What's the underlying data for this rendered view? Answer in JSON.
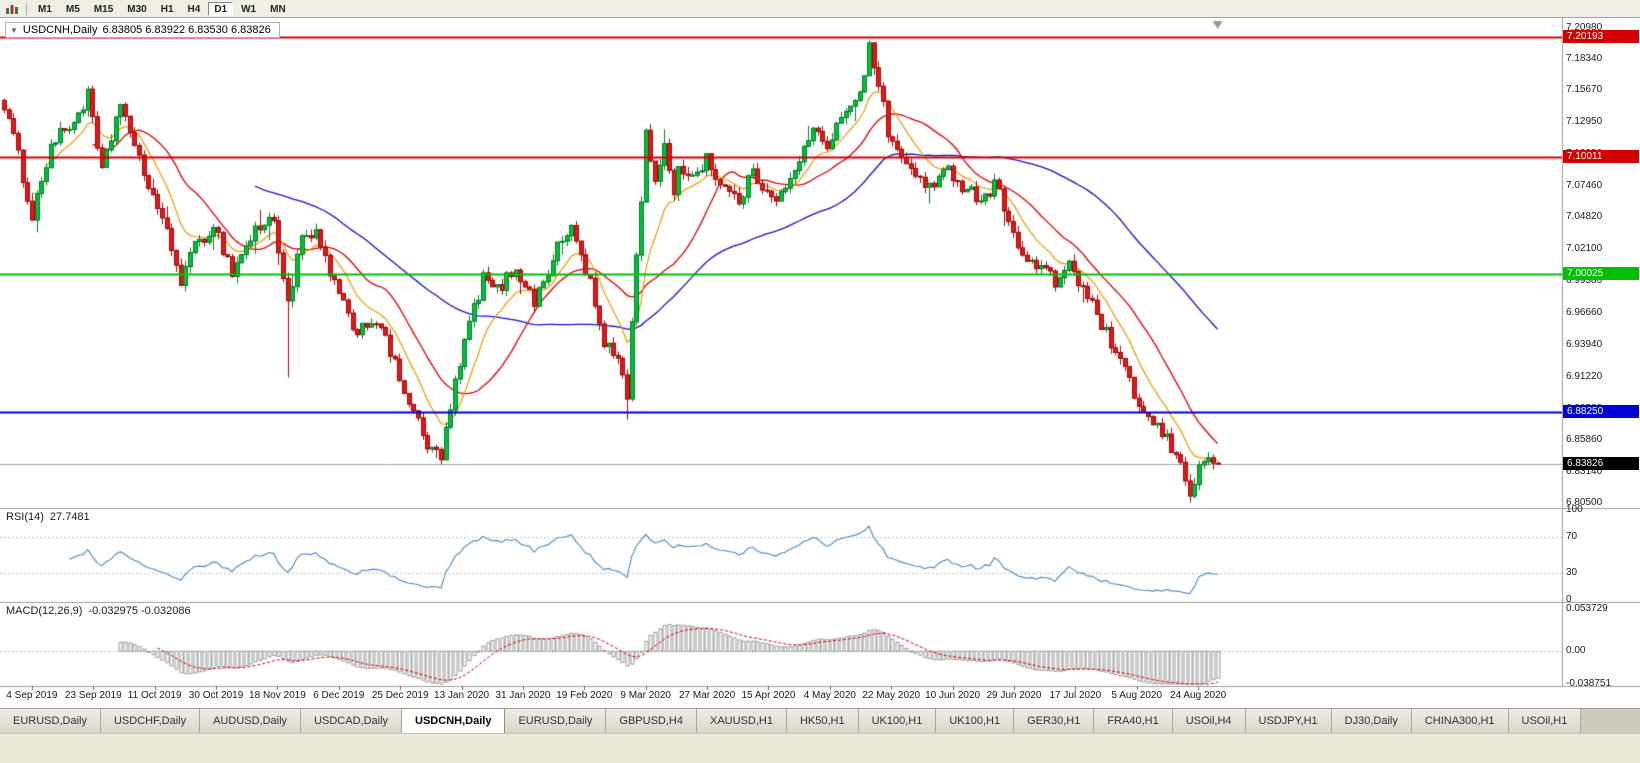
{
  "toolbar": {
    "chart_icon": "chart-icon",
    "timeframes": [
      "M1",
      "M5",
      "M15",
      "M30",
      "H1",
      "H4",
      "D1",
      "W1",
      "MN"
    ],
    "active": "D1"
  },
  "chart": {
    "symbol_period": "USDCNH,Daily",
    "ohlc": "6.83805 6.83922 6.83530 6.83826",
    "collapse_icon": "triangle-down"
  },
  "price_axis": {
    "labels": [
      "7.20980",
      "7.18340",
      "7.15670",
      "7.12950",
      "7.10230",
      "7.07460",
      "7.04820",
      "7.02100",
      "6.99380",
      "6.96660",
      "6.93940",
      "6.91220",
      "6.88500",
      "6.85860",
      "6.83140",
      "6.80500"
    ]
  },
  "levels": [
    {
      "label": "7.20193",
      "price": 7.20193,
      "color": "#D40000",
      "kind": "resistance"
    },
    {
      "label": "7.10011",
      "price": 7.10011,
      "color": "#D40000",
      "kind": "resistance"
    },
    {
      "label": "7.00025",
      "price": 7.00025,
      "color": "#00BE00",
      "kind": "support"
    },
    {
      "label": "6.88250",
      "price": 6.8825,
      "color": "#0000D4",
      "kind": "support"
    },
    {
      "label": "6.83826",
      "price": 6.83826,
      "color": "#000000",
      "kind": "current"
    }
  ],
  "rsi": {
    "label": "RSI(14)",
    "value": "27.7481",
    "scale": [
      "100",
      "70",
      "30",
      "0"
    ],
    "upper_level": 70,
    "lower_level": 30,
    "line_color": "#4C86C8"
  },
  "macd": {
    "label": "MACD(12,26,9)",
    "values": "-0.032975 -0.032086",
    "scale": [
      "0.053729",
      "0.00",
      "-0.038751"
    ],
    "histogram_color": "#9A9A9A",
    "signal_color": "#D40000"
  },
  "date_axis": {
    "labels": [
      "4 Sep 2019",
      "23 Sep 2019",
      "11 Oct 2019",
      "30 Oct 2019",
      "18 Nov 2019",
      "6 Dec 2019",
      "25 Dec 2019",
      "13 Jan 2020",
      "31 Jan 2020",
      "19 Feb 2020",
      "9 Mar 2020",
      "27 Mar 2020",
      "15 Apr 2020",
      "4 May 2020",
      "22 May 2020",
      "10 Jun 2020",
      "29 Jun 2020",
      "17 Jul 2020",
      "5 Aug 2020",
      "24 Aug 2020"
    ]
  },
  "tabs": {
    "active_index": 4,
    "items": [
      "EURUSD,Daily",
      "USDCHF,Daily",
      "AUDUSD,Daily",
      "USDCAD,Daily",
      "USDCNH,Daily",
      "EURUSD,Daily",
      "GBPUSD,H4",
      "XAUUSD,H1",
      "HK50,H1",
      "UK100,H1",
      "UK100,H1",
      "GER30,H1",
      "FRA40,H1",
      "USOil,H4",
      "USDJPY,H1",
      "DJ30,Daily",
      "CHINA300,H1",
      "USOil,H1"
    ]
  },
  "chart_data": {
    "type": "candlestick",
    "symbol": "USDCNH",
    "timeframe": "Daily",
    "n_candles": 262,
    "price_top": 7.2181,
    "price_bottom": 6.8008,
    "current_bid": 6.83826,
    "horizontal_levels": [
      7.20193,
      7.10011,
      7.00025,
      6.8825
    ],
    "overlays": [
      {
        "name": "ema-fast",
        "period": 10,
        "color": "#F09A00"
      },
      {
        "name": "sma-mid",
        "period": 20,
        "color": "#E00000"
      },
      {
        "name": "sma-slow",
        "period": 55,
        "color": "#1414CC"
      }
    ],
    "sub_indicators": [
      {
        "name": "RSI",
        "period": 14,
        "last": 27.7481
      },
      {
        "name": "MACD",
        "fast": 12,
        "slow": 26,
        "signal": 9,
        "last_macd": -0.032975,
        "last_signal": -0.032086
      }
    ],
    "close_waypoints": [
      [
        0,
        7.145
      ],
      [
        3,
        7.1
      ],
      [
        6,
        7.05
      ],
      [
        10,
        7.11
      ],
      [
        15,
        7.13
      ],
      [
        18,
        7.152
      ],
      [
        21,
        7.085
      ],
      [
        25,
        7.148
      ],
      [
        28,
        7.105
      ],
      [
        33,
        7.058
      ],
      [
        38,
        6.996
      ],
      [
        41,
        7.022
      ],
      [
        45,
        7.042
      ],
      [
        49,
        7.002
      ],
      [
        54,
        7.038
      ],
      [
        58,
        7.046
      ],
      [
        61,
        6.975
      ],
      [
        64,
        7.03
      ],
      [
        67,
        7.032
      ],
      [
        71,
        6.992
      ],
      [
        75,
        6.952
      ],
      [
        80,
        6.962
      ],
      [
        84,
        6.922
      ],
      [
        88,
        6.882
      ],
      [
        91,
        6.852
      ],
      [
        94,
        6.845
      ],
      [
        97,
        6.905
      ],
      [
        100,
        6.958
      ],
      [
        103,
        6.996
      ],
      [
        106,
        6.986
      ],
      [
        110,
        7.006
      ],
      [
        114,
        6.976
      ],
      [
        119,
        7.022
      ],
      [
        122,
        7.04
      ],
      [
        126,
        6.992
      ],
      [
        129,
        6.938
      ],
      [
        132,
        6.93
      ],
      [
        134,
        6.898
      ],
      [
        136,
        7.015
      ],
      [
        138,
        7.118
      ],
      [
        140,
        7.082
      ],
      [
        142,
        7.108
      ],
      [
        144,
        7.062
      ],
      [
        145,
        7.094
      ],
      [
        148,
        7.082
      ],
      [
        151,
        7.1
      ],
      [
        154,
        7.076
      ],
      [
        158,
        7.062
      ],
      [
        161,
        7.086
      ],
      [
        164,
        7.072
      ],
      [
        167,
        7.066
      ],
      [
        171,
        7.094
      ],
      [
        174,
        7.128
      ],
      [
        177,
        7.102
      ],
      [
        180,
        7.136
      ],
      [
        184,
        7.156
      ],
      [
        186,
        7.192
      ],
      [
        188,
        7.162
      ],
      [
        190,
        7.122
      ],
      [
        193,
        7.096
      ],
      [
        197,
        7.082
      ],
      [
        200,
        7.072
      ],
      [
        203,
        7.09
      ],
      [
        206,
        7.076
      ],
      [
        210,
        7.064
      ],
      [
        213,
        7.076
      ],
      [
        216,
        7.05
      ],
      [
        219,
        7.012
      ],
      [
        223,
        7.006
      ],
      [
        226,
        6.992
      ],
      [
        229,
        7.01
      ],
      [
        232,
        6.986
      ],
      [
        236,
        6.958
      ],
      [
        239,
        6.93
      ],
      [
        242,
        6.908
      ],
      [
        245,
        6.88
      ],
      [
        249,
        6.864
      ],
      [
        252,
        6.846
      ],
      [
        255,
        6.816
      ],
      [
        258,
        6.842
      ],
      [
        261,
        6.83826
      ]
    ]
  }
}
